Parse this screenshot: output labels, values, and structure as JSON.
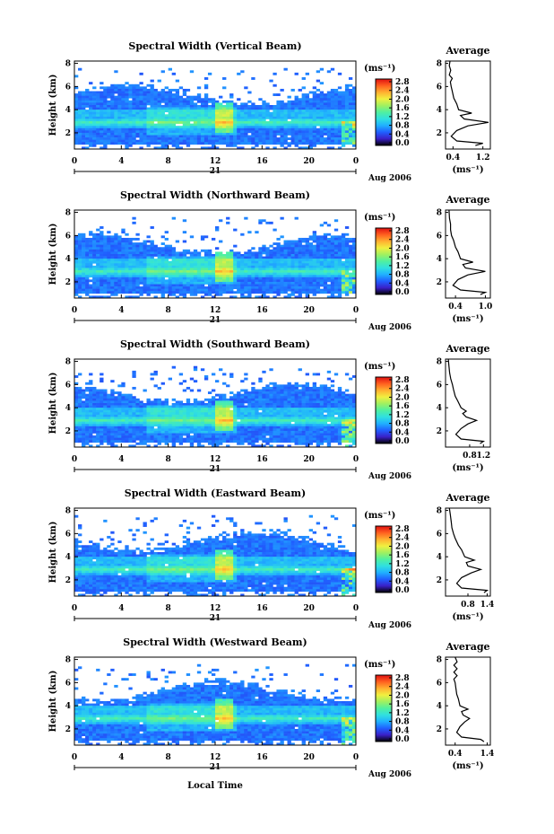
{
  "x_axis": {
    "ticks": [
      "0",
      "4",
      "8",
      "12",
      "16",
      "20",
      "0"
    ],
    "day_label": "21",
    "month_label": "Aug 2006",
    "xlabel": "Local Time"
  },
  "colorbar": {
    "unit": "(ms⁻¹)",
    "stops": [
      "#000000",
      "#3a20c8",
      "#2060ff",
      "#20b0ff",
      "#30e0e0",
      "#50f0a0",
      "#a0f060",
      "#f0f040",
      "#ffb030",
      "#ff6020",
      "#e01010"
    ]
  },
  "chart_data": [
    {
      "type": "heatmap",
      "title": "Spectral Width (Vertical Beam)",
      "xlabel": "",
      "ylabel": "Height (km)",
      "xlim": [
        0,
        24
      ],
      "ylim": [
        0.6,
        8.2
      ],
      "y_ticks": [
        "2",
        "4",
        "6",
        "8"
      ],
      "colorbar_ticks": [
        "2.8",
        "2.4",
        "2.0",
        "1.6",
        "1.2",
        "0.8",
        "0.4",
        "0.0"
      ],
      "colorbar_range": [
        0,
        3.0
      ],
      "profile": {
        "title": "Average",
        "xlabel": "(ms⁻¹)",
        "x_ticks": [
          "0.4",
          "1.2"
        ],
        "xlim": [
          0.2,
          1.4
        ],
        "ylim": [
          0.6,
          8.2
        ],
        "y_ticks": [
          "2",
          "4",
          "6",
          "8"
        ],
        "points": [
          [
            1.0,
            0.9
          ],
          [
            1.2,
            1.1
          ],
          [
            0.5,
            1.3
          ],
          [
            0.35,
            1.7
          ],
          [
            0.5,
            2.2
          ],
          [
            0.8,
            2.6
          ],
          [
            1.35,
            2.9
          ],
          [
            0.7,
            3.2
          ],
          [
            0.6,
            3.5
          ],
          [
            0.9,
            3.7
          ],
          [
            0.55,
            4.0
          ],
          [
            0.5,
            4.5
          ],
          [
            0.42,
            5.0
          ],
          [
            0.38,
            5.6
          ],
          [
            0.35,
            6.0
          ],
          [
            0.33,
            6.4
          ],
          [
            0.38,
            6.7
          ],
          [
            0.3,
            7.0
          ],
          [
            0.34,
            7.4
          ],
          [
            0.3,
            7.8
          ],
          [
            0.32,
            8.2
          ]
        ]
      }
    },
    {
      "type": "heatmap",
      "title": "Spectral Width (Northward Beam)",
      "xlabel": "",
      "ylabel": "Height (km)",
      "xlim": [
        0,
        24
      ],
      "ylim": [
        0.6,
        8.2
      ],
      "y_ticks": [
        "2",
        "4",
        "6",
        "8"
      ],
      "colorbar_ticks": [
        "2.8",
        "2.4",
        "2.0",
        "1.6",
        "1.2",
        "0.8",
        "0.4",
        "0.0"
      ],
      "colorbar_range": [
        0,
        3.0
      ],
      "profile": {
        "title": "Average",
        "xlabel": "(ms⁻¹)",
        "x_ticks": [
          "0.4",
          "1.0"
        ],
        "xlim": [
          0.2,
          1.1
        ],
        "ylim": [
          0.6,
          8.2
        ],
        "y_ticks": [
          "2",
          "4",
          "6",
          "8"
        ],
        "points": [
          [
            0.9,
            0.9
          ],
          [
            1.0,
            1.1
          ],
          [
            0.5,
            1.3
          ],
          [
            0.35,
            1.7
          ],
          [
            0.45,
            2.2
          ],
          [
            0.65,
            2.6
          ],
          [
            1.0,
            2.9
          ],
          [
            0.6,
            3.2
          ],
          [
            0.55,
            3.5
          ],
          [
            0.75,
            3.7
          ],
          [
            0.5,
            4.0
          ],
          [
            0.45,
            4.6
          ],
          [
            0.4,
            5.0
          ],
          [
            0.36,
            5.6
          ],
          [
            0.32,
            6.0
          ],
          [
            0.3,
            6.5
          ],
          [
            0.3,
            7.0
          ],
          [
            0.28,
            7.5
          ],
          [
            0.27,
            8.2
          ]
        ]
      }
    },
    {
      "type": "heatmap",
      "title": "Spectral Width (Southward Beam)",
      "xlabel": "",
      "ylabel": "Height (km)",
      "xlim": [
        0,
        24
      ],
      "ylim": [
        0.6,
        8.2
      ],
      "y_ticks": [
        "2",
        "4",
        "6",
        "8"
      ],
      "colorbar_ticks": [
        "2.8",
        "2.4",
        "2.0",
        "1.6",
        "1.2",
        "0.8",
        "0.4",
        "0.0"
      ],
      "colorbar_range": [
        0,
        3.0
      ],
      "profile": {
        "title": "Average",
        "xlabel": "(ms⁻¹)",
        "x_ticks": [
          "0.8",
          "1.2"
        ],
        "xlim": [
          0.1,
          1.4
        ],
        "ylim": [
          0.6,
          8.2
        ],
        "y_ticks": [
          "2",
          "4",
          "6",
          "8"
        ],
        "points": [
          [
            1.1,
            0.9
          ],
          [
            1.2,
            1.1
          ],
          [
            0.55,
            1.3
          ],
          [
            0.4,
            1.7
          ],
          [
            0.55,
            2.2
          ],
          [
            0.75,
            2.6
          ],
          [
            1.0,
            2.9
          ],
          [
            0.7,
            3.2
          ],
          [
            0.6,
            3.5
          ],
          [
            0.7,
            3.7
          ],
          [
            0.55,
            4.0
          ],
          [
            0.45,
            4.6
          ],
          [
            0.38,
            5.0
          ],
          [
            0.33,
            5.6
          ],
          [
            0.3,
            6.0
          ],
          [
            0.25,
            6.5
          ],
          [
            0.22,
            7.0
          ],
          [
            0.2,
            7.6
          ],
          [
            0.18,
            8.2
          ]
        ]
      }
    },
    {
      "type": "heatmap",
      "title": "Spectral Width (Eastward Beam)",
      "xlabel": "",
      "ylabel": "Height (km)",
      "xlim": [
        0,
        24
      ],
      "ylim": [
        0.6,
        8.2
      ],
      "y_ticks": [
        "2",
        "4",
        "6",
        "8"
      ],
      "colorbar_ticks": [
        "2.8",
        "2.4",
        "2.0",
        "1.6",
        "1.2",
        "0.8",
        "0.4",
        "0.0"
      ],
      "colorbar_range": [
        0,
        3.0
      ],
      "profile": {
        "title": "Average",
        "xlabel": "(ms⁻¹)",
        "x_ticks": [
          "0.8",
          "1.4"
        ],
        "xlim": [
          0.1,
          1.5
        ],
        "ylim": [
          0.6,
          8.2
        ],
        "y_ticks": [
          "2",
          "4",
          "6",
          "8"
        ],
        "points": [
          [
            1.3,
            0.9
          ],
          [
            1.4,
            1.1
          ],
          [
            0.6,
            1.3
          ],
          [
            0.45,
            1.7
          ],
          [
            0.6,
            2.2
          ],
          [
            0.9,
            2.6
          ],
          [
            1.2,
            2.9
          ],
          [
            0.8,
            3.2
          ],
          [
            0.75,
            3.5
          ],
          [
            1.0,
            3.7
          ],
          [
            0.7,
            4.0
          ],
          [
            0.6,
            4.6
          ],
          [
            0.5,
            5.0
          ],
          [
            0.4,
            5.6
          ],
          [
            0.35,
            6.0
          ],
          [
            0.3,
            6.5
          ],
          [
            0.28,
            7.0
          ],
          [
            0.25,
            7.6
          ],
          [
            0.22,
            8.2
          ]
        ]
      }
    },
    {
      "type": "heatmap",
      "title": "Spectral Width (Westward Beam)",
      "xlabel": "",
      "ylabel": "Height (km)",
      "xlim": [
        0,
        24
      ],
      "ylim": [
        0.6,
        8.2
      ],
      "y_ticks": [
        "2",
        "4",
        "6",
        "8"
      ],
      "colorbar_ticks": [
        "2.8",
        "2.4",
        "2.0",
        "1.6",
        "1.2",
        "0.8",
        "0.4",
        "0.0"
      ],
      "colorbar_range": [
        0,
        3.0
      ],
      "profile": {
        "title": "Average",
        "xlabel": "(ms⁻¹)",
        "x_ticks": [
          "0.4",
          "1.4"
        ],
        "xlim": [
          0.1,
          1.5
        ],
        "ylim": [
          0.6,
          8.2
        ],
        "y_ticks": [
          "2",
          "4",
          "6",
          "8"
        ],
        "points": [
          [
            1.3,
            0.9
          ],
          [
            1.2,
            1.1
          ],
          [
            0.6,
            1.3
          ],
          [
            0.45,
            1.7
          ],
          [
            0.55,
            2.2
          ],
          [
            0.7,
            2.6
          ],
          [
            0.85,
            2.9
          ],
          [
            0.65,
            3.2
          ],
          [
            0.6,
            3.5
          ],
          [
            0.8,
            3.7
          ],
          [
            0.55,
            4.0
          ],
          [
            0.5,
            4.6
          ],
          [
            0.45,
            5.0
          ],
          [
            0.42,
            5.6
          ],
          [
            0.4,
            6.0
          ],
          [
            0.36,
            6.3
          ],
          [
            0.46,
            6.6
          ],
          [
            0.36,
            6.9
          ],
          [
            0.46,
            7.2
          ],
          [
            0.36,
            7.5
          ],
          [
            0.46,
            7.8
          ],
          [
            0.4,
            8.2
          ]
        ]
      }
    }
  ]
}
